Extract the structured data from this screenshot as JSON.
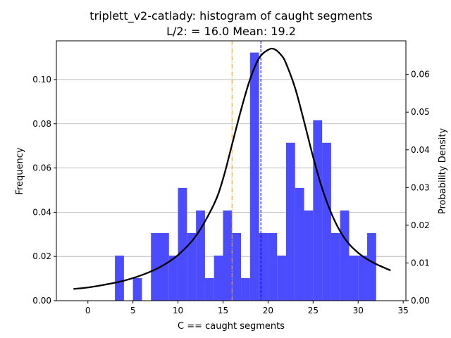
{
  "chart_data": {
    "type": "bar",
    "title": "triplett_v2-catlady: histogram of caught segments",
    "subtitle": "L/2: = 16.0 Mean: 19.2",
    "xlabel": "C == caught segments",
    "ylabel": "Frequency",
    "y2label": "Probability Density",
    "xlim": [
      -3.5,
      35.3
    ],
    "ylim": [
      0,
      0.1175
    ],
    "y2lim": [
      0,
      0.0689
    ],
    "xticks": [
      0,
      5,
      10,
      15,
      20,
      25,
      30,
      35
    ],
    "yticks": [
      0.0,
      0.02,
      0.04,
      0.06,
      0.08,
      0.1
    ],
    "y2ticks": [
      0.0,
      0.01,
      0.02,
      0.03,
      0.04,
      0.05,
      0.06
    ],
    "x_tick_labels": [
      "0",
      "5",
      "10",
      "15",
      "20",
      "25",
      "30",
      "35"
    ],
    "y_tick_labels": [
      "0.00",
      "0.02",
      "0.04",
      "0.06",
      "0.08",
      "0.10"
    ],
    "y2_tick_labels": [
      "0.00",
      "0.01",
      "0.02",
      "0.03",
      "0.04",
      "0.05",
      "0.06"
    ],
    "grid": "y-major",
    "histogram": {
      "color": "#4b4bff",
      "bin_width": 1.0,
      "bins": [
        {
          "x": 3,
          "value": 0.0204
        },
        {
          "x": 5,
          "value": 0.0102
        },
        {
          "x": 7,
          "value": 0.0306
        },
        {
          "x": 8,
          "value": 0.0306
        },
        {
          "x": 9,
          "value": 0.0204
        },
        {
          "x": 10,
          "value": 0.051
        },
        {
          "x": 11,
          "value": 0.0306
        },
        {
          "x": 12,
          "value": 0.0408
        },
        {
          "x": 13,
          "value": 0.0102
        },
        {
          "x": 14,
          "value": 0.0204
        },
        {
          "x": 15,
          "value": 0.0408
        },
        {
          "x": 16,
          "value": 0.0306
        },
        {
          "x": 17,
          "value": 0.0102
        },
        {
          "x": 18,
          "value": 0.1122
        },
        {
          "x": 19,
          "value": 0.0306
        },
        {
          "x": 20,
          "value": 0.0306
        },
        {
          "x": 21,
          "value": 0.0204
        },
        {
          "x": 22,
          "value": 0.0714
        },
        {
          "x": 23,
          "value": 0.051
        },
        {
          "x": 24,
          "value": 0.0408
        },
        {
          "x": 25,
          "value": 0.0816
        },
        {
          "x": 26,
          "value": 0.0714
        },
        {
          "x": 27,
          "value": 0.0306
        },
        {
          "x": 28,
          "value": 0.0408
        },
        {
          "x": 29,
          "value": 0.0204
        },
        {
          "x": 30,
          "value": 0.0204
        },
        {
          "x": 31,
          "value": 0.0306
        }
      ]
    },
    "density_curve": {
      "color": "#000000",
      "axis": "right",
      "x": [
        -1.6,
        0,
        2,
        4,
        6,
        8,
        10,
        12,
        14,
        15,
        16,
        17,
        18,
        19,
        20,
        20.7,
        21.5,
        22,
        23,
        24,
        25,
        26,
        27,
        28,
        29,
        30,
        31,
        32,
        33.6
      ],
      "y": [
        0.0031,
        0.0035,
        0.0043,
        0.0053,
        0.0068,
        0.0089,
        0.0121,
        0.0172,
        0.0256,
        0.0323,
        0.0414,
        0.0506,
        0.0587,
        0.0643,
        0.0665,
        0.0667,
        0.065,
        0.0629,
        0.0564,
        0.0475,
        0.0381,
        0.0298,
        0.0233,
        0.0184,
        0.015,
        0.0127,
        0.011,
        0.0097,
        0.008
      ]
    },
    "reference_lines": [
      {
        "x": 16.0,
        "color": "#ffa500",
        "style": "dashdot"
      },
      {
        "x": 19.2,
        "color": "#0000ff",
        "style": "dashed"
      }
    ]
  }
}
